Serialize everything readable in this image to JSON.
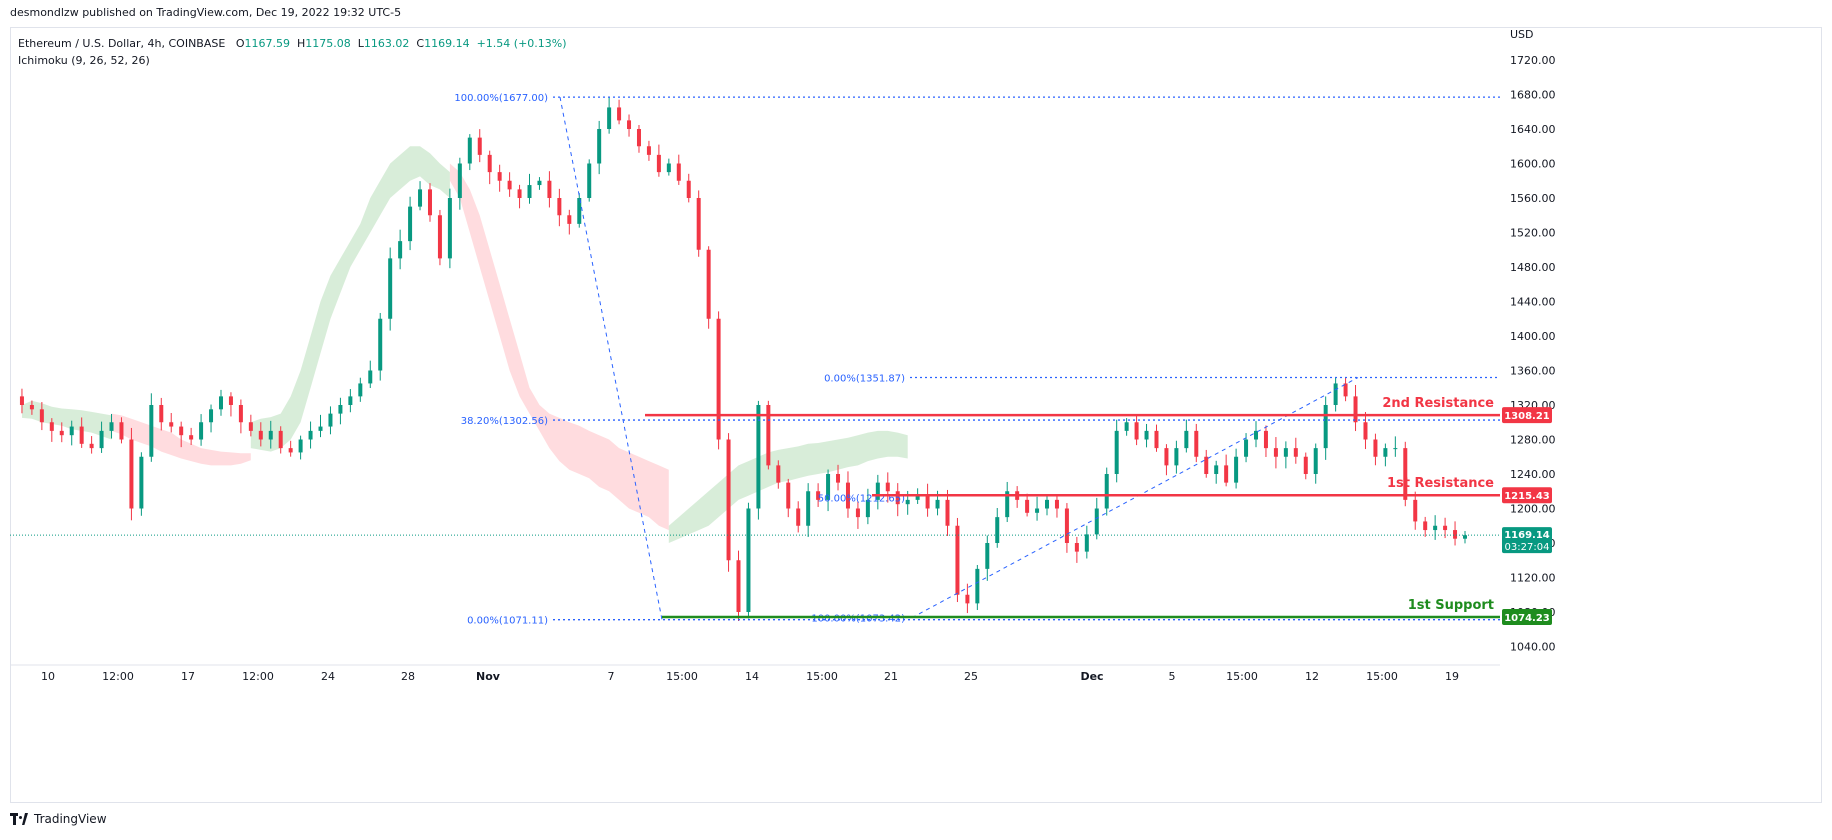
{
  "header": {
    "publish_line": "desmondlzw published on TradingView.com, Dec 19, 2022 19:32 UTC-5"
  },
  "legend": {
    "symbol_line": "Ethereum / U.S. Dollar, 4h, COINBASE",
    "o_label": "O",
    "o_value": "1167.59",
    "h_label": "H",
    "h_value": "1175.08",
    "l_label": "L",
    "l_value": "1163.02",
    "c_label": "C",
    "c_value": "1169.14",
    "change": "+1.54 (+0.13%)",
    "indicator": "Ichimoku (9, 26, 52, 26)"
  },
  "footer": {
    "brand": "TradingView"
  },
  "colors": {
    "up": "#089981",
    "down": "#f23645",
    "fib": "#2962ff",
    "resistance": "#f23645",
    "support": "#1e8c1e",
    "cloud_bull": "#c8e6c9",
    "cloud_bear": "#ffcdd2",
    "price_line": "#089981"
  },
  "chart_data": {
    "type": "candlestick",
    "symbol": "Ethereum / U.S. Dollar",
    "timeframe": "4h",
    "exchange": "COINBASE",
    "y_axis": {
      "unit": "USD",
      "ticks": [
        "1720.00",
        "1680.00",
        "1640.00",
        "1600.00",
        "1560.00",
        "1520.00",
        "1480.00",
        "1440.00",
        "1400.00",
        "1360.00",
        "1320.00",
        "1280.00",
        "1240.00",
        "1200.00",
        "1160.00",
        "1120.00",
        "1080.00",
        "1040.00"
      ],
      "range": [
        1012,
        1754
      ]
    },
    "x_axis": {
      "ticks": [
        "10",
        "12:00",
        "17",
        "12:00",
        "24",
        "28",
        "Nov",
        "7",
        "15:00",
        "14",
        "15:00",
        "21",
        "25",
        "Dec",
        "5",
        "15:00",
        "12",
        "15:00",
        "19"
      ],
      "bold": [
        "Nov",
        "Dec"
      ]
    },
    "last_price": {
      "value": "1169.14",
      "countdown": "03:27:04"
    },
    "levels": [
      {
        "name": "2nd Resistance",
        "value": 1308.21,
        "label": "1308.21",
        "kind": "resistance"
      },
      {
        "name": "1st Resistance",
        "value": 1215.43,
        "label": "1215.43",
        "kind": "resistance"
      },
      {
        "name": "1st Support",
        "value": 1074.23,
        "label": "1074.23",
        "kind": "support"
      }
    ],
    "fib_labels": [
      {
        "text": "100.00%(1677.00)",
        "value": 1677.0
      },
      {
        "text": "38.20%(1302.56)",
        "value": 1302.56
      },
      {
        "text": "0.00%(1071.11)",
        "value": 1071.11
      },
      {
        "text": "0.00%(1351.87)",
        "value": 1351.87
      },
      {
        "text": "50.00%(1212.65)",
        "value": 1212.65
      },
      {
        "text": "100.00%(1073.42)",
        "value": 1073.42
      }
    ],
    "price_path": [
      1330,
      1320,
      1315,
      1300,
      1290,
      1285,
      1295,
      1275,
      1270,
      1290,
      1300,
      1280,
      1200,
      1260,
      1320,
      1300,
      1295,
      1285,
      1280,
      1300,
      1315,
      1330,
      1320,
      1300,
      1290,
      1280,
      1290,
      1270,
      1265,
      1280,
      1290,
      1295,
      1310,
      1320,
      1330,
      1345,
      1360,
      1420,
      1490,
      1510,
      1550,
      1570,
      1540,
      1490,
      1560,
      1600,
      1630,
      1610,
      1590,
      1580,
      1570,
      1560,
      1575,
      1580,
      1560,
      1540,
      1530,
      1560,
      1600,
      1640,
      1665,
      1650,
      1640,
      1620,
      1610,
      1590,
      1600,
      1580,
      1560,
      1500,
      1420,
      1280,
      1140,
      1080,
      1200,
      1320,
      1250,
      1230,
      1200,
      1180,
      1220,
      1210,
      1240,
      1230,
      1200,
      1190,
      1210,
      1230,
      1220,
      1205,
      1210,
      1215,
      1200,
      1210,
      1180,
      1100,
      1090,
      1130,
      1160,
      1190,
      1220,
      1210,
      1195,
      1200,
      1210,
      1200,
      1160,
      1150,
      1170,
      1200,
      1240,
      1290,
      1300,
      1280,
      1290,
      1270,
      1250,
      1270,
      1290,
      1260,
      1240,
      1250,
      1230,
      1260,
      1280,
      1290,
      1270,
      1260,
      1270,
      1260,
      1240,
      1270,
      1320,
      1345,
      1330,
      1300,
      1280,
      1260,
      1270,
      1270,
      1210,
      1185,
      1175,
      1180,
      1175,
      1165,
      1169
    ],
    "ichimoku_cloud": [
      {
        "start": 1,
        "end": 10,
        "top": [
          1320,
          1325,
          1322,
          1318,
          1316,
          1315,
          1314,
          1312,
          1310,
          1308
        ],
        "bottom": [
          1305,
          1304,
          1300,
          1298,
          1296,
          1292,
          1290,
          1288,
          1284,
          1280
        ],
        "kind": "bull"
      },
      {
        "start": 10,
        "end": 24,
        "top": [
          1310,
          1308,
          1304,
          1300,
          1296,
          1292,
          1288,
          1280,
          1275,
          1270,
          1268,
          1266,
          1265,
          1264,
          1264
        ],
        "bottom": [
          1290,
          1286,
          1280,
          1276,
          1272,
          1266,
          1262,
          1258,
          1255,
          1252,
          1250,
          1250,
          1250,
          1252,
          1256
        ],
        "kind": "bear"
      },
      {
        "start": 24,
        "end": 44,
        "top": [
          1300,
          1304,
          1306,
          1310,
          1330,
          1360,
          1400,
          1440,
          1470,
          1490,
          1510,
          1530,
          1560,
          1580,
          1600,
          1610,
          1620,
          1620,
          1612,
          1600,
          1590
        ],
        "bottom": [
          1270,
          1268,
          1266,
          1270,
          1280,
          1300,
          1340,
          1380,
          1420,
          1450,
          1480,
          1500,
          1520,
          1540,
          1560,
          1570,
          1580,
          1585,
          1575,
          1570,
          1560
        ],
        "kind": "bull"
      },
      {
        "start": 44,
        "end": 66,
        "top": [
          1600,
          1590,
          1570,
          1540,
          1500,
          1460,
          1420,
          1380,
          1340,
          1320,
          1310,
          1305,
          1300,
          1296,
          1290,
          1285,
          1280,
          1270,
          1265,
          1260,
          1255,
          1250,
          1245
        ],
        "bottom": [
          1580,
          1560,
          1520,
          1480,
          1440,
          1400,
          1360,
          1330,
          1310,
          1290,
          1270,
          1255,
          1245,
          1240,
          1235,
          1225,
          1220,
          1210,
          1200,
          1195,
          1190,
          1180,
          1175
        ],
        "kind": "bear"
      },
      {
        "start": 66,
        "end": 90,
        "top": [
          1180,
          1190,
          1200,
          1210,
          1220,
          1230,
          1240,
          1250,
          1255,
          1260,
          1265,
          1268,
          1270,
          1272,
          1275,
          1276,
          1278,
          1280,
          1282,
          1285,
          1288,
          1290,
          1290,
          1288,
          1285
        ],
        "bottom": [
          1160,
          1165,
          1170,
          1175,
          1180,
          1190,
          1200,
          1210,
          1215,
          1220,
          1225,
          1230,
          1232,
          1235,
          1238,
          1240,
          1242,
          1245,
          1248,
          1250,
          1255,
          1258,
          1260,
          1260,
          1258
        ],
        "kind": "bull"
      }
    ]
  }
}
